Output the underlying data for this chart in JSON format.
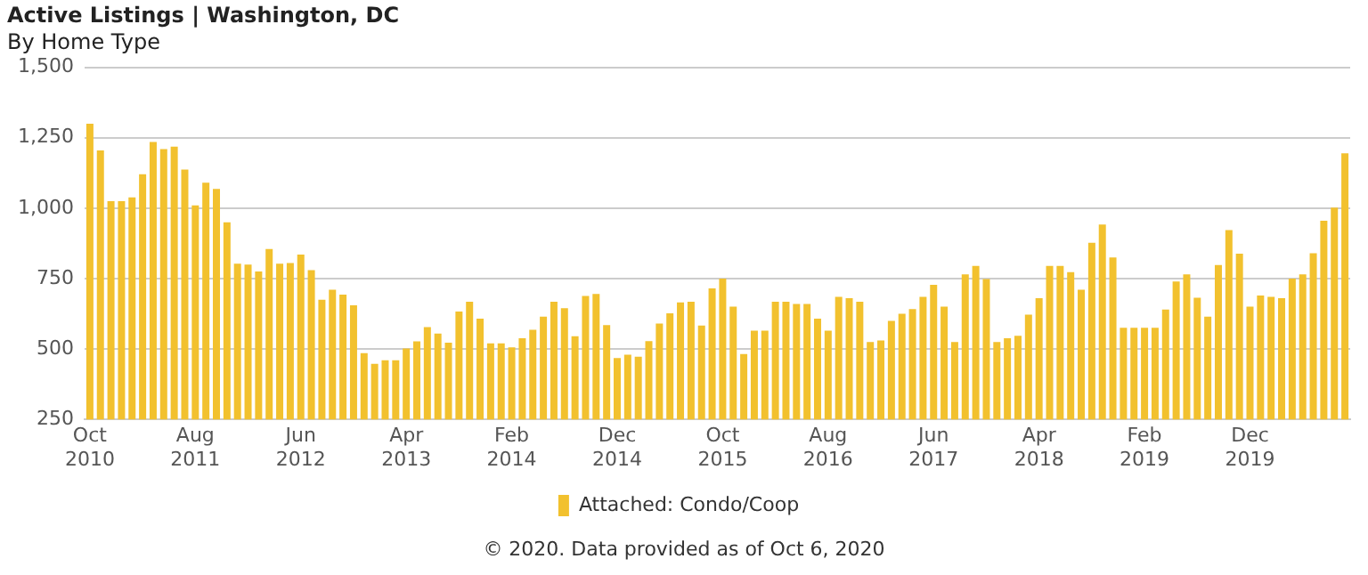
{
  "chart_data": {
    "type": "bar",
    "title": "Active Listings | Washington, DC",
    "subtitle": "By Home Type",
    "categories": [
      "Oct 2010",
      null,
      null,
      null,
      null,
      null,
      null,
      null,
      null,
      null,
      "Aug 2011",
      null,
      null,
      null,
      null,
      null,
      null,
      null,
      null,
      null,
      "Jun 2012",
      null,
      null,
      null,
      null,
      null,
      null,
      null,
      null,
      null,
      "Apr 2013",
      null,
      null,
      null,
      null,
      null,
      null,
      null,
      null,
      null,
      "Feb 2014",
      null,
      null,
      null,
      null,
      null,
      null,
      null,
      null,
      null,
      "Dec 2014",
      null,
      null,
      null,
      null,
      null,
      null,
      null,
      null,
      null,
      "Oct 2015",
      null,
      null,
      null,
      null,
      null,
      null,
      null,
      null,
      null,
      "Aug 2016",
      null,
      null,
      null,
      null,
      null,
      null,
      null,
      null,
      null,
      "Jun 2017",
      null,
      null,
      null,
      null,
      null,
      null,
      null,
      null,
      null,
      "Apr 2018",
      null,
      null,
      null,
      null,
      null,
      null,
      null,
      null,
      null,
      "Feb 2019",
      null,
      null,
      null,
      null,
      null,
      null,
      null,
      null,
      null,
      "Dec 2019",
      null,
      null,
      null,
      null,
      null,
      null,
      null,
      null,
      null
    ],
    "series": [
      {
        "name": "Attached: Condo/Coop",
        "color": "#f2c12e",
        "values": [
          1300,
          1205,
          1025,
          1025,
          1038,
          1120,
          1235,
          1210,
          1218,
          1137,
          1010,
          1090,
          1068,
          950,
          803,
          800,
          775,
          855,
          803,
          805,
          835,
          780,
          675,
          710,
          693,
          655,
          485,
          447,
          460,
          460,
          502,
          527,
          578,
          555,
          522,
          633,
          668,
          608,
          520,
          520,
          506,
          538,
          568,
          615,
          668,
          645,
          545,
          688,
          695,
          585,
          468,
          480,
          473,
          528,
          590,
          627,
          665,
          668,
          583,
          715,
          750,
          650,
          482,
          565,
          565,
          668,
          668,
          660,
          660,
          608,
          565,
          685,
          680,
          668,
          525,
          530,
          600,
          625,
          642,
          685,
          728,
          650,
          525,
          765,
          795,
          748,
          525,
          538,
          547,
          622,
          680,
          795,
          795,
          773,
          710,
          877,
          942,
          825,
          575,
          575,
          575,
          575,
          640,
          740,
          765,
          682,
          615,
          798,
          922,
          838,
          650,
          690,
          685,
          680,
          750,
          765,
          840,
          955,
          1002,
          1195
        ]
      }
    ],
    "ylim": [
      250,
      1500
    ],
    "yticks": [
      250,
      500,
      750,
      {
        "value": 1000,
        "label": "1,000"
      },
      {
        "value": 1250,
        "label": "1,250"
      },
      {
        "value": 1500,
        "label": "1,500"
      }
    ],
    "grid": "y",
    "legend": "bottom",
    "annotations": [
      "© 2020. Data provided as of Oct 6, 2020"
    ]
  }
}
